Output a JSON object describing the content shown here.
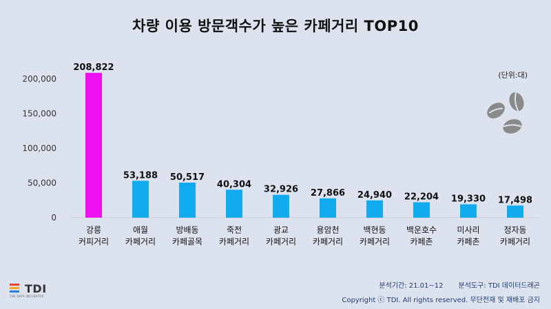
{
  "title": "차량 이용 방문객수가 높은 카페거리 TOP10",
  "unit_label": "(단위:대)",
  "chart_data": {
    "type": "bar",
    "categories": [
      [
        "강릉",
        "커피거리"
      ],
      [
        "애월",
        "카페거리"
      ],
      [
        "방배동",
        "카페골목"
      ],
      [
        "죽전",
        "카페거리"
      ],
      [
        "광교",
        "카페거리"
      ],
      [
        "용암천",
        "카페거리"
      ],
      [
        "백현동",
        "카페거리"
      ],
      [
        "백운호수",
        "카페촌"
      ],
      [
        "미사리",
        "카페촌"
      ],
      [
        "정자동",
        "카페거리"
      ]
    ],
    "values": [
      208822,
      53188,
      50517,
      40304,
      32926,
      27866,
      24940,
      22204,
      19330,
      17498
    ],
    "value_labels": [
      "208,822",
      "53,188",
      "50,517",
      "40,304",
      "32,926",
      "27,866",
      "24,940",
      "22,204",
      "19,330",
      "17,498"
    ],
    "ylim": [
      0,
      200000
    ],
    "yticks": [
      0,
      50000,
      100000,
      150000,
      200000
    ],
    "ytick_labels": [
      "0",
      "50,000",
      "100,000",
      "150,000",
      "200,000"
    ],
    "colors": [
      "#ee10ee",
      "#10aaee"
    ],
    "grid": false
  },
  "footer": {
    "period": "분석기간: 21.01~12",
    "tool": "분석도구: TDI 데이터드래곤",
    "copyright": "Copyright ⓒ TDI. All rights reserved. 무단전재 및 재배포 금지"
  },
  "logo": {
    "text": "TDI",
    "subtitle": "THE DATA INCUBATOR"
  },
  "decoration": {
    "icon": "coffee-beans-icon"
  }
}
